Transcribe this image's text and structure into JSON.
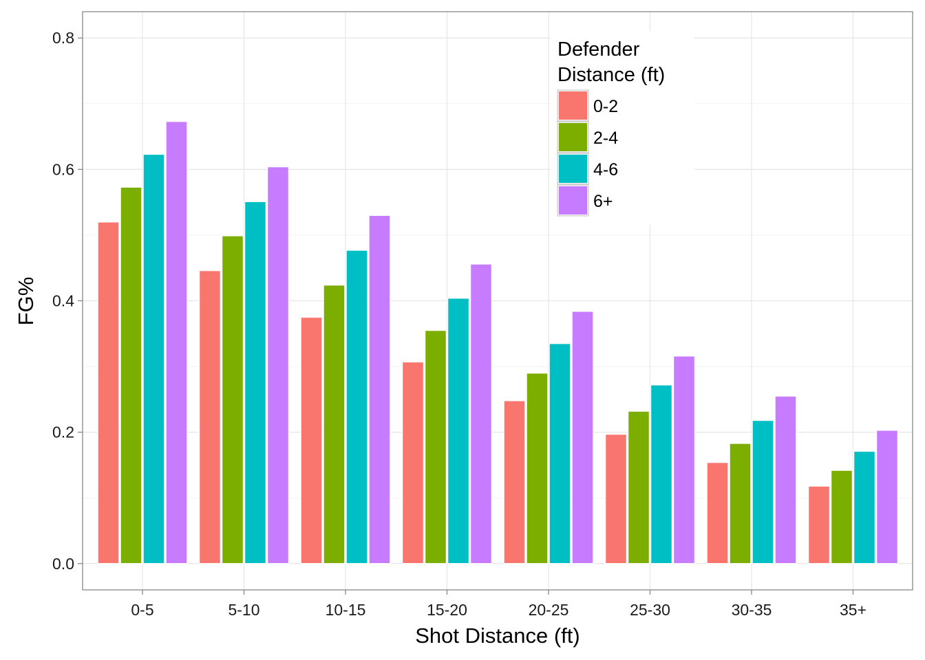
{
  "chart_data": {
    "type": "bar",
    "title": "",
    "xlabel": "Shot Distance (ft)",
    "ylabel": "FG%",
    "categories": [
      "0-5",
      "5-10",
      "10-15",
      "15-20",
      "20-25",
      "25-30",
      "30-35",
      "35+"
    ],
    "ylim": [
      -0.04,
      0.84
    ],
    "yticks": [
      "0.0",
      "0.2",
      "0.4",
      "0.6",
      "0.8"
    ],
    "grid": true,
    "legend": {
      "title_lines": [
        "Defender",
        "Distance (ft)"
      ],
      "placement": "top-right (inside plot)"
    },
    "series": [
      {
        "name": "0-2",
        "color": "#F8766D",
        "values": [
          0.52,
          0.446,
          0.375,
          0.307,
          0.248,
          0.197,
          0.154,
          0.118
        ]
      },
      {
        "name": "2-4",
        "color": "#7CAE00",
        "values": [
          0.573,
          0.499,
          0.424,
          0.355,
          0.29,
          0.232,
          0.183,
          0.142
        ]
      },
      {
        "name": "4-6",
        "color": "#00BFC4",
        "values": [
          0.623,
          0.551,
          0.477,
          0.404,
          0.335,
          0.272,
          0.218,
          0.171
        ]
      },
      {
        "name": "6+",
        "color": "#C77CFF",
        "values": [
          0.673,
          0.604,
          0.53,
          0.456,
          0.384,
          0.316,
          0.255,
          0.203
        ]
      }
    ]
  }
}
